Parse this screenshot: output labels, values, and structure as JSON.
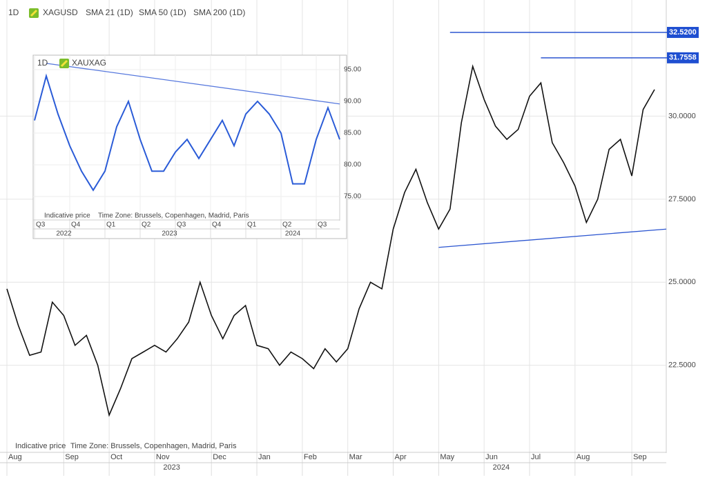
{
  "chart_data": [
    {
      "type": "line",
      "interval": "1D",
      "title": "XAGUSD",
      "indicators": [
        "SMA 21 (1D)",
        "SMA 50 (1D)",
        "SMA 200 (1D)"
      ],
      "note": "Indicative price",
      "timezone": "Time Zone: Brussels, Copenhagen, Madrid, Paris",
      "categories": [
        "Aug",
        null,
        null,
        null,
        null,
        "Sep",
        null,
        null,
        null,
        "Oct",
        null,
        null,
        null,
        "Nov",
        null,
        null,
        null,
        null,
        "Dec",
        null,
        null,
        null,
        "Jan",
        null,
        null,
        null,
        "Feb",
        null,
        null,
        null,
        "Mar",
        null,
        null,
        null,
        "Apr",
        null,
        null,
        null,
        "May",
        null,
        null,
        null,
        "Jun",
        null,
        null,
        null,
        "Jul",
        null,
        null,
        null,
        "Aug",
        null,
        null,
        null,
        null,
        "Sep",
        null,
        null
      ],
      "x_groups": [
        "2023",
        "2024"
      ],
      "series": [
        {
          "name": "XAGUSD",
          "color": "#111111",
          "values": [
            24.8,
            23.7,
            22.8,
            22.9,
            24.4,
            24.0,
            23.1,
            23.4,
            22.5,
            21.0,
            21.8,
            22.7,
            22.9,
            23.1,
            22.9,
            23.3,
            23.8,
            25.0,
            24.0,
            23.3,
            24.0,
            24.3,
            23.1,
            23.0,
            22.5,
            22.9,
            22.7,
            22.4,
            23.0,
            22.6,
            23.0,
            24.2,
            25.0,
            24.8,
            26.6,
            27.7,
            28.4,
            27.4,
            26.6,
            27.2,
            29.8,
            31.5,
            30.5,
            29.7,
            29.3,
            29.6,
            30.6,
            31.0,
            29.2,
            28.6,
            27.9,
            26.8,
            27.5,
            29.0,
            29.3,
            28.2,
            30.2,
            30.8
          ]
        }
      ],
      "ylim": [
        19.9,
        33.33
      ],
      "yticks": [
        {
          "value": 22.5,
          "label": "22.5000"
        },
        {
          "value": 25,
          "label": "25.0000"
        },
        {
          "value": 27.5,
          "label": "27.5000"
        },
        {
          "value": 30,
          "label": "30.0000"
        }
      ],
      "levels": [
        {
          "value": 32.52,
          "label": "32.5200"
        },
        {
          "value": 31.7558,
          "label": "31.7558"
        }
      ],
      "trendline": [
        26.05,
        26.6
      ],
      "line_color": "#2b55d0",
      "grid": true
    },
    {
      "type": "line",
      "interval": "1D",
      "title": "XAUXAG",
      "note": "Indicative price",
      "timezone": "Time Zone: Brussels, Copenhagen, Madrid, Paris",
      "categories": [
        "Q3",
        null,
        null,
        "Q4",
        null,
        null,
        "Q1",
        null,
        null,
        "Q2",
        null,
        null,
        "Q3",
        null,
        null,
        "Q4",
        null,
        null,
        "Q1",
        null,
        null,
        "Q2",
        null,
        null,
        "Q3",
        null,
        null
      ],
      "x_groups": [
        "2022",
        "2023",
        "2024"
      ],
      "series": [
        {
          "name": "XAUXAG",
          "color": "#2a5bd7",
          "values": [
            87,
            94,
            88,
            83,
            79,
            76,
            79,
            86,
            90,
            84,
            79,
            79,
            82,
            84,
            81,
            84,
            87,
            83,
            88,
            90,
            88,
            85,
            77,
            77,
            84,
            89,
            84
          ]
        }
      ],
      "ylim": [
        71.2,
        96.2
      ],
      "yticks": [
        {
          "value": 75,
          "label": "75.00"
        },
        {
          "value": 80,
          "label": "80.00"
        },
        {
          "value": 85,
          "label": "85.00"
        },
        {
          "value": 90,
          "label": "90.00"
        },
        {
          "value": 95,
          "label": "95.00"
        }
      ],
      "trendline": [
        96.0,
        89.6
      ],
      "line_color": "#5577dd",
      "grid": true
    }
  ]
}
